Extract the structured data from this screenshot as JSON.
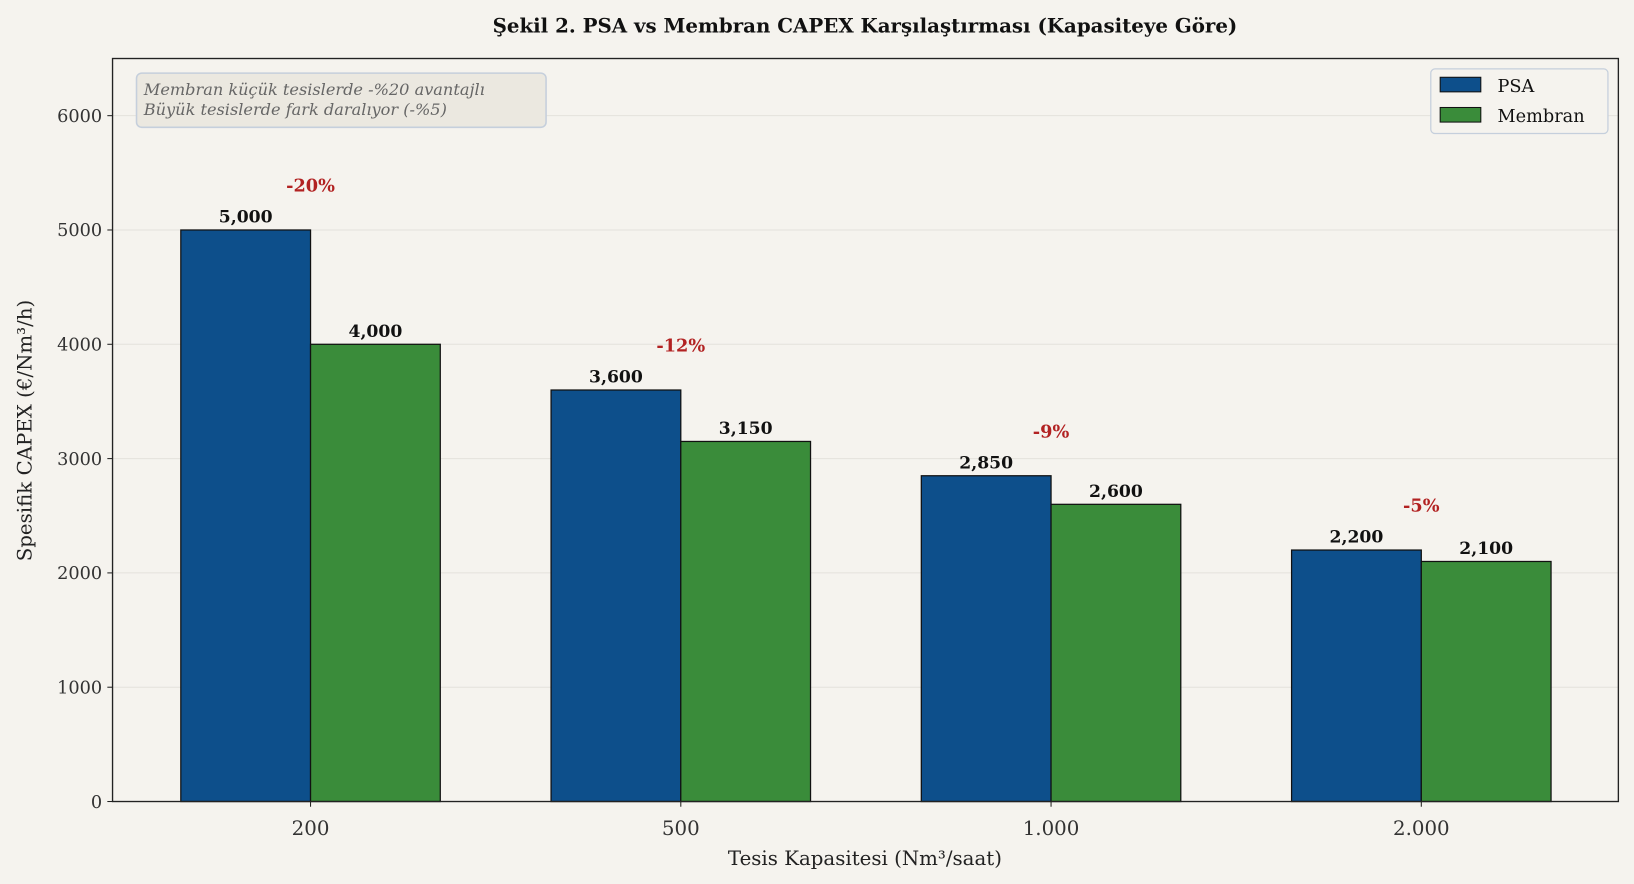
{
  "chart_data": {
    "type": "bar",
    "title": "Şekil 2. PSA vs Membran CAPEX Karşılaştırması (Kapasiteye Göre)",
    "xlabel": "Tesis Kapasitesi (Nm³/saat)",
    "ylabel": "Spesifik CAPEX (€/Nm³/h)",
    "categories": [
      "200",
      "500",
      "1.000",
      "2.000"
    ],
    "series": [
      {
        "name": "PSA",
        "values": [
          5000,
          3600,
          2850,
          2200
        ],
        "labels": [
          "5,000",
          "3,600",
          "2,850",
          "2,200"
        ],
        "color": "#0d4f8b"
      },
      {
        "name": "Membran",
        "values": [
          4000,
          3150,
          2600,
          2100
        ],
        "labels": [
          "4,000",
          "3,150",
          "2,600",
          "2,100"
        ],
        "color": "#3a8c3a"
      }
    ],
    "diff_labels": [
      "-20%",
      "-12%",
      "-9%",
      "-5%"
    ],
    "diff_color": "#b22222",
    "ylim": [
      0,
      6500
    ],
    "yticks": [
      0,
      1000,
      2000,
      3000,
      4000,
      5000,
      6000
    ],
    "grid": true,
    "legend": "top-right",
    "annotation": [
      "Membran küçük tesislerde -%20 avantajlı",
      "Büyük tesislerde fark daralıyor (-%5)"
    ]
  }
}
